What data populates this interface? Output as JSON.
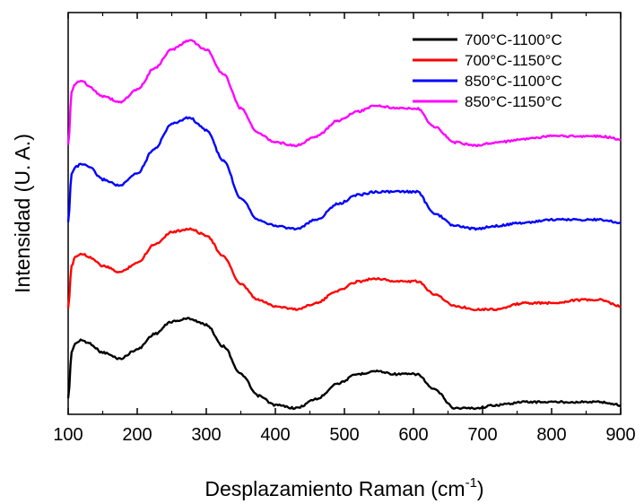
{
  "chart_data": {
    "type": "line",
    "title": "",
    "xlabel": "Desplazamiento Raman (cm",
    "xlabel_sup": "-1",
    "xlabel_end": ")",
    "ylabel": "Intensidad (U. A.)",
    "xlim": [
      100,
      900
    ],
    "xticks": [
      100,
      200,
      300,
      400,
      500,
      600,
      700,
      800,
      900
    ],
    "y_ticks_labeled": false,
    "grid": false,
    "legend_position": "top-right",
    "series": [
      {
        "name": "700°C-1100°C",
        "color": "#000000",
        "x": [
          100,
          105,
          110,
          120,
          130,
          150,
          175,
          200,
          225,
          250,
          275,
          300,
          325,
          350,
          375,
          400,
          430,
          460,
          490,
          520,
          545,
          575,
          605,
          630,
          660,
          690,
          720,
          760,
          800,
          840,
          870,
          900
        ],
        "y": [
          0.05,
          0.2,
          0.23,
          0.24,
          0.23,
          0.2,
          0.18,
          0.21,
          0.26,
          0.3,
          0.31,
          0.29,
          0.22,
          0.13,
          0.06,
          0.03,
          0.02,
          0.05,
          0.1,
          0.13,
          0.14,
          0.13,
          0.13,
          0.08,
          0.02,
          0.02,
          0.03,
          0.04,
          0.04,
          0.04,
          0.04,
          0.03
        ]
      },
      {
        "name": "700°C-1150°C",
        "color": "#ff0000",
        "x": [
          100,
          105,
          110,
          120,
          130,
          150,
          175,
          200,
          225,
          250,
          275,
          300,
          325,
          350,
          375,
          400,
          430,
          460,
          490,
          520,
          545,
          575,
          605,
          630,
          660,
          690,
          720,
          760,
          800,
          840,
          870,
          900
        ],
        "y": [
          0.34,
          0.48,
          0.51,
          0.52,
          0.51,
          0.48,
          0.46,
          0.49,
          0.55,
          0.59,
          0.6,
          0.58,
          0.51,
          0.42,
          0.37,
          0.35,
          0.34,
          0.36,
          0.4,
          0.43,
          0.44,
          0.43,
          0.43,
          0.39,
          0.35,
          0.34,
          0.34,
          0.36,
          0.36,
          0.37,
          0.37,
          0.35
        ]
      },
      {
        "name": "850°C-1100°C",
        "color": "#0000ff",
        "x": [
          100,
          105,
          110,
          120,
          130,
          150,
          175,
          200,
          225,
          250,
          275,
          300,
          325,
          350,
          375,
          400,
          430,
          460,
          490,
          520,
          545,
          575,
          605,
          630,
          660,
          690,
          720,
          760,
          800,
          840,
          870,
          900
        ],
        "y": [
          0.62,
          0.78,
          0.8,
          0.81,
          0.8,
          0.76,
          0.74,
          0.78,
          0.86,
          0.94,
          0.96,
          0.92,
          0.82,
          0.7,
          0.63,
          0.61,
          0.6,
          0.63,
          0.68,
          0.71,
          0.72,
          0.72,
          0.72,
          0.65,
          0.61,
          0.6,
          0.61,
          0.62,
          0.63,
          0.63,
          0.63,
          0.62
        ]
      },
      {
        "name": "850°C-1150°C",
        "color": "#ff00ff",
        "x": [
          100,
          105,
          110,
          120,
          130,
          150,
          175,
          200,
          225,
          250,
          275,
          300,
          325,
          350,
          375,
          400,
          430,
          460,
          490,
          520,
          545,
          575,
          605,
          630,
          660,
          690,
          720,
          760,
          800,
          840,
          870,
          900
        ],
        "y": [
          0.87,
          1.04,
          1.07,
          1.08,
          1.06,
          1.03,
          1.01,
          1.05,
          1.12,
          1.18,
          1.21,
          1.18,
          1.1,
          0.99,
          0.91,
          0.88,
          0.87,
          0.9,
          0.95,
          0.98,
          1.0,
          0.99,
          0.99,
          0.93,
          0.88,
          0.87,
          0.88,
          0.89,
          0.9,
          0.9,
          0.9,
          0.89
        ]
      }
    ],
    "ylim": [
      0,
      1.3
    ]
  }
}
